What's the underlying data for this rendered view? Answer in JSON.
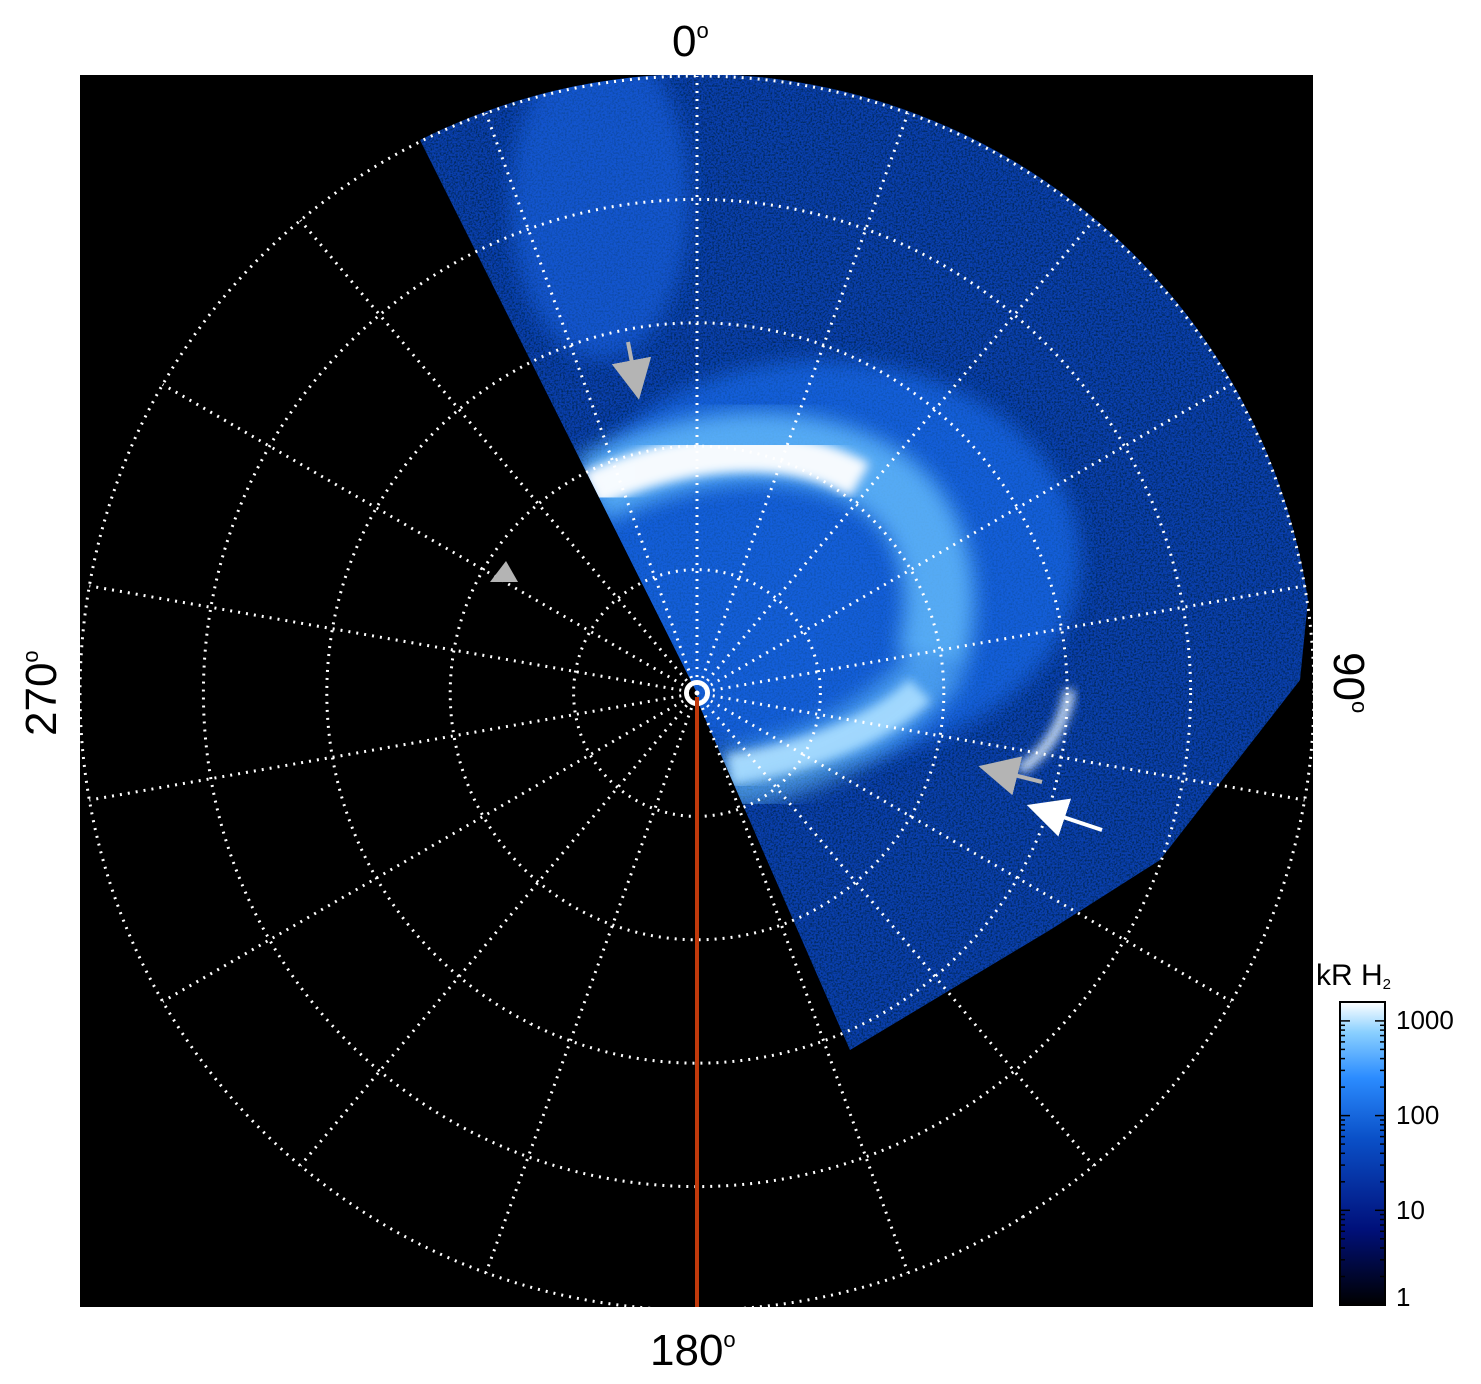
{
  "angle_labels": {
    "top": "0",
    "right": "90",
    "bottom": "180",
    "left": "270",
    "degree_symbol": "o"
  },
  "colorbar": {
    "title_main": "kR H",
    "title_sub": "2",
    "ticks": [
      "1000",
      "100",
      "10",
      "1"
    ],
    "scale": "log",
    "range": [
      1,
      1000
    ],
    "colors": [
      "#000000",
      "#00107a",
      "#0a50c8",
      "#2b8cff",
      "#8ad0ff",
      "#ffffff"
    ]
  },
  "grid": {
    "style": "dotted",
    "color": "#ffffff",
    "radial_spokes_deg_step": 20,
    "ring_count": 5
  },
  "colors": {
    "background": "#000000",
    "meridian_line": "#c0390b",
    "arrow_gray": "#b4b4b4",
    "arrow_white": "#ffffff"
  }
}
